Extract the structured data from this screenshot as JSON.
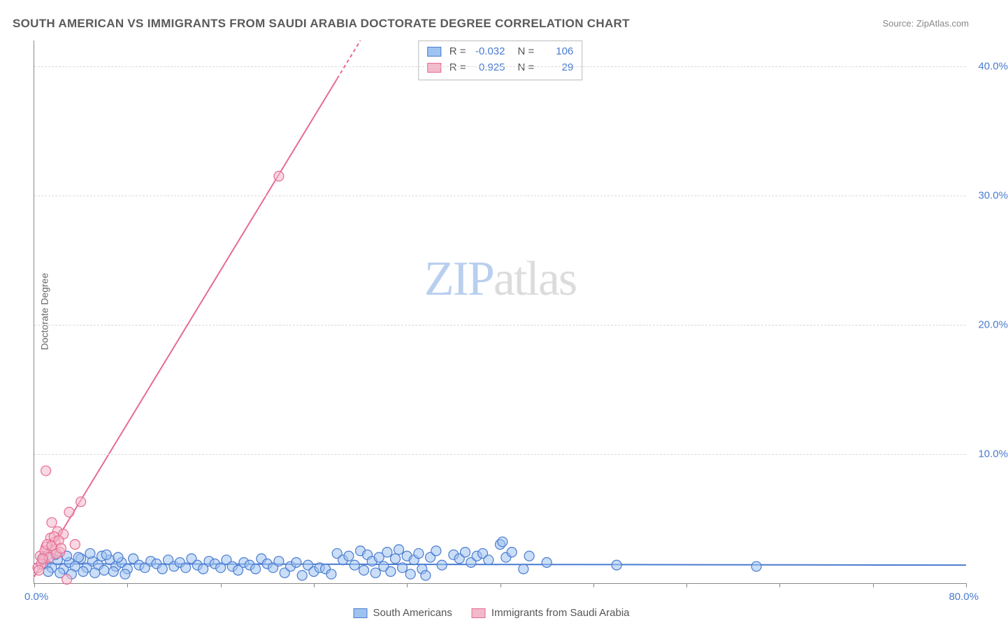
{
  "title": "SOUTH AMERICAN VS IMMIGRANTS FROM SAUDI ARABIA DOCTORATE DEGREE CORRELATION CHART",
  "source": "Source: ZipAtlas.com",
  "ylabel": "Doctorate Degree",
  "watermark": {
    "part1": "ZIP",
    "part2": "atlas"
  },
  "chart": {
    "type": "scatter",
    "background_color": "#ffffff",
    "grid_color": "#dadada",
    "axis_color": "#888888",
    "xlim": [
      0,
      80
    ],
    "ylim": [
      0,
      42
    ],
    "x_ticks": [
      0,
      8,
      16,
      24,
      32,
      40,
      48,
      56,
      64,
      72,
      80
    ],
    "x_tick_labels": {
      "left": "0.0%",
      "right": "80.0%"
    },
    "y_gridlines": [
      10,
      20,
      30,
      40
    ],
    "y_tick_labels": [
      "10.0%",
      "20.0%",
      "30.0%",
      "40.0%"
    ],
    "tick_label_color": "#4a7bd0",
    "tick_label_fontsize": 15,
    "ylabel_fontsize": 14,
    "ylabel_color": "#666666",
    "title_fontsize": 17,
    "title_color": "#5a5a5a",
    "marker_radius": 7,
    "marker_opacity": 0.55,
    "marker_stroke_width": 1.2,
    "trend_line_width": 2,
    "series": [
      {
        "name": "South Americans",
        "fill_color": "#9ec3f0",
        "stroke_color": "#4a7bd0",
        "R": "-0.032",
        "N": "106",
        "trend": {
          "x1": 0,
          "y1": 1.5,
          "x2": 80,
          "y2": 1.4
        },
        "points": [
          [
            1,
            1.5
          ],
          [
            1.5,
            1.2
          ],
          [
            2,
            1.8
          ],
          [
            2.5,
            1.1
          ],
          [
            3,
            1.6
          ],
          [
            3.5,
            1.3
          ],
          [
            4,
            1.9
          ],
          [
            4.5,
            1.2
          ],
          [
            5,
            1.7
          ],
          [
            5.5,
            1.4
          ],
          [
            6,
            1.0
          ],
          [
            6.5,
            1.8
          ],
          [
            7,
            1.3
          ],
          [
            7.5,
            1.6
          ],
          [
            8,
            1.1
          ],
          [
            8.5,
            1.9
          ],
          [
            9,
            1.4
          ],
          [
            9.5,
            1.2
          ],
          [
            10,
            1.7
          ],
          [
            10.5,
            1.5
          ],
          [
            11,
            1.1
          ],
          [
            11.5,
            1.8
          ],
          [
            12,
            1.3
          ],
          [
            12.5,
            1.6
          ],
          [
            13,
            1.2
          ],
          [
            13.5,
            1.9
          ],
          [
            14,
            1.4
          ],
          [
            14.5,
            1.1
          ],
          [
            15,
            1.7
          ],
          [
            15.5,
            1.5
          ],
          [
            16,
            1.2
          ],
          [
            16.5,
            1.8
          ],
          [
            17,
            1.3
          ],
          [
            17.5,
            1.0
          ],
          [
            18,
            1.6
          ],
          [
            18.5,
            1.4
          ],
          [
            19,
            1.1
          ],
          [
            19.5,
            1.9
          ],
          [
            20,
            1.5
          ],
          [
            20.5,
            1.2
          ],
          [
            21,
            1.7
          ],
          [
            21.5,
            0.8
          ],
          [
            22,
            1.3
          ],
          [
            22.5,
            1.6
          ],
          [
            23,
            0.6
          ],
          [
            23.5,
            1.4
          ],
          [
            24,
            0.9
          ],
          [
            24.5,
            1.2
          ],
          [
            25,
            1.1
          ],
          [
            25.5,
            0.7
          ],
          [
            26,
            2.3
          ],
          [
            26.5,
            1.8
          ],
          [
            27,
            2.1
          ],
          [
            27.5,
            1.4
          ],
          [
            28,
            2.5
          ],
          [
            28.3,
            1.0
          ],
          [
            28.6,
            2.2
          ],
          [
            29,
            1.7
          ],
          [
            29.3,
            0.8
          ],
          [
            29.6,
            2.0
          ],
          [
            30,
            1.3
          ],
          [
            30.3,
            2.4
          ],
          [
            30.6,
            0.9
          ],
          [
            31,
            1.9
          ],
          [
            31.3,
            2.6
          ],
          [
            31.6,
            1.2
          ],
          [
            32,
            2.1
          ],
          [
            32.3,
            0.7
          ],
          [
            32.6,
            1.8
          ],
          [
            33,
            2.3
          ],
          [
            33.3,
            1.1
          ],
          [
            33.6,
            0.6
          ],
          [
            34,
            2.0
          ],
          [
            34.5,
            2.5
          ],
          [
            35,
            1.4
          ],
          [
            36,
            2.2
          ],
          [
            36.5,
            1.9
          ],
          [
            37,
            2.4
          ],
          [
            37.5,
            1.6
          ],
          [
            38,
            2.1
          ],
          [
            38.5,
            2.3
          ],
          [
            39,
            1.8
          ],
          [
            40,
            3.0
          ],
          [
            40.2,
            3.2
          ],
          [
            40.5,
            2.0
          ],
          [
            41,
            2.4
          ],
          [
            42,
            1.1
          ],
          [
            42.5,
            2.1
          ],
          [
            44,
            1.6
          ],
          [
            50,
            1.4
          ],
          [
            62,
            1.3
          ],
          [
            0.8,
            2.0
          ],
          [
            1.2,
            0.9
          ],
          [
            1.8,
            2.2
          ],
          [
            2.2,
            0.8
          ],
          [
            2.8,
            2.1
          ],
          [
            3.2,
            0.7
          ],
          [
            3.8,
            2.0
          ],
          [
            4.2,
            0.9
          ],
          [
            4.8,
            2.3
          ],
          [
            5.2,
            0.8
          ],
          [
            5.8,
            2.1
          ],
          [
            6.2,
            2.2
          ],
          [
            6.8,
            0.9
          ],
          [
            7.2,
            2.0
          ],
          [
            7.8,
            0.7
          ]
        ]
      },
      {
        "name": "Immigrants from Saudi Arabia",
        "fill_color": "#f2b9ca",
        "stroke_color": "#e86a94",
        "R": "0.925",
        "N": "29",
        "trend": {
          "x1": 0,
          "y1": 0.5,
          "x2": 28,
          "y2": 42,
          "dash_from_x": 26
        },
        "points": [
          [
            0.3,
            1.2
          ],
          [
            0.5,
            2.1
          ],
          [
            0.8,
            1.8
          ],
          [
            1.0,
            2.8
          ],
          [
            1.2,
            2.2
          ],
          [
            1.4,
            3.5
          ],
          [
            1.6,
            2.6
          ],
          [
            1.8,
            3.2
          ],
          [
            2.0,
            4.0
          ],
          [
            2.2,
            2.4
          ],
          [
            2.5,
            3.8
          ],
          [
            0.6,
            1.5
          ],
          [
            0.9,
            2.5
          ],
          [
            1.1,
            3.0
          ],
          [
            1.3,
            2.0
          ],
          [
            1.5,
            2.9
          ],
          [
            1.7,
            3.6
          ],
          [
            1.9,
            2.3
          ],
          [
            2.1,
            3.3
          ],
          [
            2.3,
            2.7
          ],
          [
            0.4,
            1.0
          ],
          [
            0.7,
            1.9
          ],
          [
            1.5,
            4.7
          ],
          [
            1.0,
            8.7
          ],
          [
            3.5,
            3.0
          ],
          [
            3.0,
            5.5
          ],
          [
            4.0,
            6.3
          ],
          [
            2.8,
            0.3
          ],
          [
            21,
            31.5
          ]
        ]
      }
    ]
  },
  "legend_bottom": [
    {
      "label": "South Americans",
      "fill": "#9ec3f0",
      "stroke": "#4a7bd0"
    },
    {
      "label": "Immigrants from Saudi Arabia",
      "fill": "#f2b9ca",
      "stroke": "#e86a94"
    }
  ]
}
